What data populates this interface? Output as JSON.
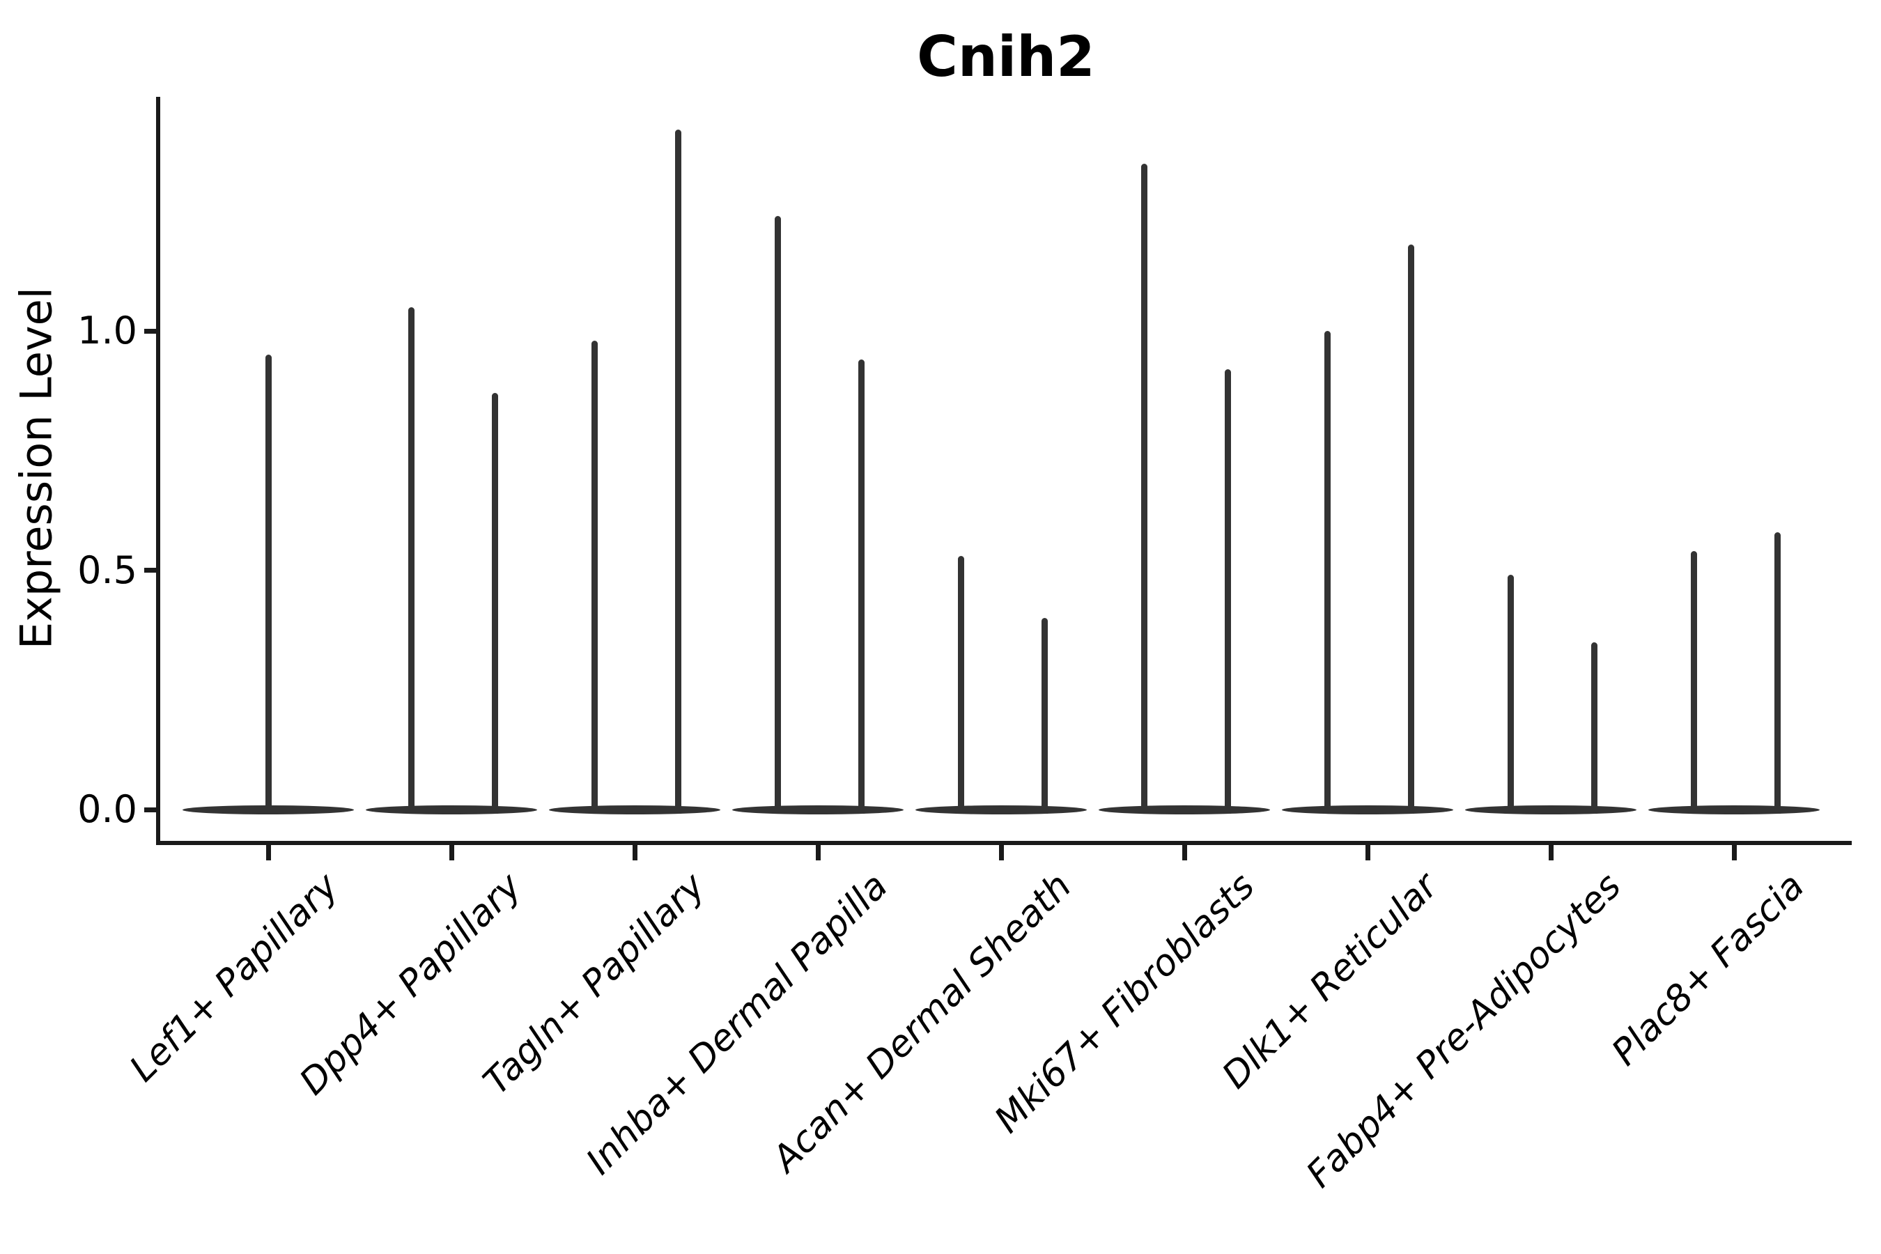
{
  "figure": {
    "title": "Cnih2"
  },
  "yaxis": {
    "label": "Expression Level"
  },
  "chart_data": {
    "type": "violin",
    "title": "Cnih2",
    "xlabel": "",
    "ylabel": "Expression Level",
    "ylim": [
      0,
      1.49
    ],
    "grid": false,
    "legend": null,
    "yticks": [
      {
        "value": 0.0,
        "label": "0.0"
      },
      {
        "value": 0.5,
        "label": "0.5"
      },
      {
        "value": 1.0,
        "label": "1.0"
      }
    ],
    "categories": [
      "Lef1+ Papillary",
      "Dpp4+ Papillary",
      "Tagln+ Papillary",
      "Inhba+ Dermal Papilla",
      "Acan+ Dermal Sheath",
      "Mki67+ Fibroblasts",
      "Dlk1+ Reticular",
      "Fabp4+ Pre-Adipocytes",
      "Plac8+ Fascia"
    ],
    "series": [
      {
        "category": "Lef1+ Papillary",
        "density_bulk_at": 0.0,
        "tail_maxima": [
          0.95
        ]
      },
      {
        "category": "Dpp4+ Papillary",
        "density_bulk_at": 0.0,
        "tail_maxima": [
          1.05,
          0.87
        ]
      },
      {
        "category": "Tagln+ Papillary",
        "density_bulk_at": 0.0,
        "tail_maxima": [
          0.98,
          1.42
        ]
      },
      {
        "category": "Inhba+ Dermal Papilla",
        "density_bulk_at": 0.0,
        "tail_maxima": [
          1.24,
          0.94
        ]
      },
      {
        "category": "Acan+ Dermal Sheath",
        "density_bulk_at": 0.0,
        "tail_maxima": [
          0.53,
          0.4
        ]
      },
      {
        "category": "Mki67+ Fibroblasts",
        "density_bulk_at": 0.0,
        "tail_maxima": [
          1.35,
          0.92
        ]
      },
      {
        "category": "Dlk1+ Reticular",
        "density_bulk_at": 0.0,
        "tail_maxima": [
          1.0,
          1.18
        ]
      },
      {
        "category": "Fabp4+ Pre-Adipocytes",
        "density_bulk_at": 0.0,
        "tail_maxima": [
          0.49,
          0.35
        ]
      },
      {
        "category": "Plac8+ Fascia",
        "density_bulk_at": 0.0,
        "tail_maxima": [
          0.54,
          0.58
        ]
      }
    ]
  },
  "colors": {
    "violin": "#333333",
    "axis": "#1a1a1a",
    "text": "#000000",
    "background": "#ffffff"
  }
}
